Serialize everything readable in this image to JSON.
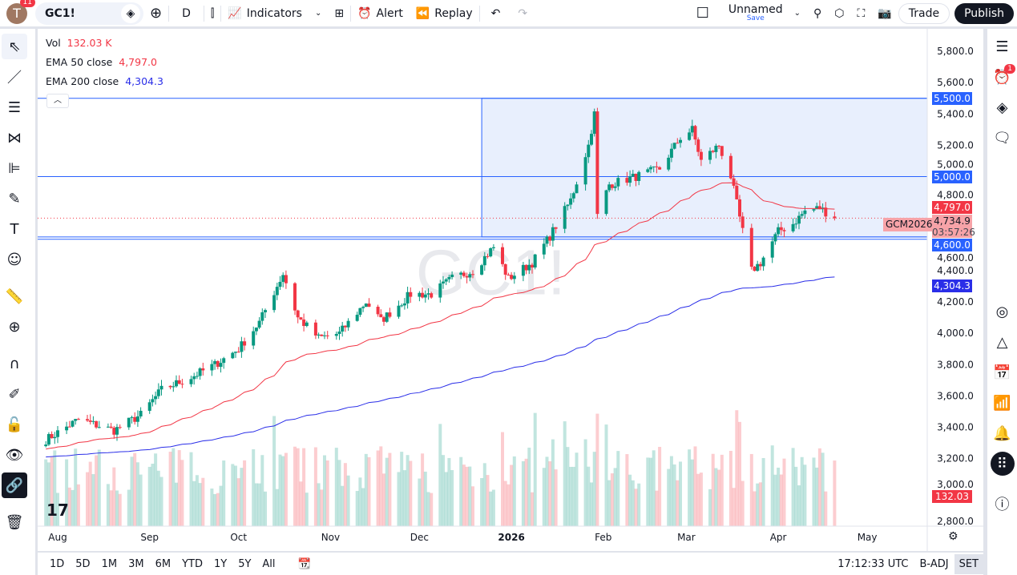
{
  "topbar": {
    "avatar_letter": "T",
    "notifications": "11",
    "symbol": "GC1!",
    "interval": "D",
    "indicators": "Indicators",
    "alert": "Alert",
    "replay": "Replay",
    "layout_name": "Unnamed",
    "save": "Save",
    "trade": "Trade",
    "publish": "Publish"
  },
  "legend": {
    "vol_label": "Vol",
    "vol_value": "132.03 K",
    "ema50_label": "EMA 50 close",
    "ema50_value": "4,797.0",
    "ema200_label": "EMA 200 close",
    "ema200_value": "4,304.3"
  },
  "watermark": "GC1!",
  "colors": {
    "up": "#089981",
    "down": "#f23645",
    "ema50": "#f23645",
    "ema200": "#2a2ee8",
    "line": "#2962ff",
    "rect": "#e8effd"
  },
  "price_axis": {
    "ticks": [
      "5,800.0",
      "5,600.0",
      "5,400.0",
      "5,200.0",
      "5,000.0",
      "4,800.0",
      "4,600.0",
      "4,400.0",
      "4,200.0",
      "4,000.0",
      "3,800.0",
      "3,600.0",
      "3,400.0",
      "3,200.0",
      "3,000.0",
      "2,800.0"
    ],
    "labels": {
      "line_5500": "5,500.0",
      "line_5000": "5,000.0",
      "ema50": "4,797.0",
      "last": "4,734.9",
      "countdown": "03:57:26",
      "line_4600": "4,600.0",
      "ema200": "4,304.3",
      "vol": "132.03 K",
      "contract": "GCM2026"
    }
  },
  "time_axis": [
    "Aug",
    "Sep",
    "Oct",
    "Nov",
    "Dec",
    "2026",
    "Feb",
    "Mar",
    "Apr",
    "May"
  ],
  "bottom": {
    "ranges": [
      "1D",
      "5D",
      "1M",
      "3M",
      "6M",
      "YTD",
      "1Y",
      "5Y",
      "All"
    ],
    "clock": "17:12:33 UTC",
    "adj": "B-ADJ",
    "session": "SET"
  },
  "right_badge": "1",
  "chart_data": {
    "type": "candlestick",
    "symbol": "GC1!",
    "interval": "D",
    "ylim": [
      2800,
      5800
    ],
    "approx_closes": [
      [
        "2025-07-28",
        3320
      ],
      [
        "2025-08-08",
        3450
      ],
      [
        "2025-08-20",
        3380
      ],
      [
        "2025-08-29",
        3480
      ],
      [
        "2025-09-05",
        3640
      ],
      [
        "2025-09-15",
        3720
      ],
      [
        "2025-09-23",
        3800
      ],
      [
        "2025-10-01",
        3900
      ],
      [
        "2025-10-08",
        4070
      ],
      [
        "2025-10-16",
        4380
      ],
      [
        "2025-10-21",
        4100
      ],
      [
        "2025-10-28",
        3970
      ],
      [
        "2025-11-04",
        4000
      ],
      [
        "2025-11-13",
        4200
      ],
      [
        "2025-11-18",
        4080
      ],
      [
        "2025-11-28",
        4250
      ],
      [
        "2025-12-05",
        4250
      ],
      [
        "2025-12-12",
        4350
      ],
      [
        "2025-12-19",
        4400
      ],
      [
        "2025-12-26",
        4550
      ],
      [
        "2025-12-31",
        4350
      ],
      [
        "2026-01-08",
        4450
      ],
      [
        "2026-01-14",
        4620
      ],
      [
        "2026-01-21",
        4850
      ],
      [
        "2026-01-27",
        5200
      ],
      [
        "2026-01-29",
        5400
      ],
      [
        "2026-01-30",
        4750
      ],
      [
        "2026-02-03",
        4950
      ],
      [
        "2026-02-12",
        5000
      ],
      [
        "2026-02-20",
        5050
      ],
      [
        "2026-02-27",
        5250
      ],
      [
        "2026-03-03",
        5300
      ],
      [
        "2026-03-06",
        5100
      ],
      [
        "2026-03-12",
        5200
      ],
      [
        "2026-03-16",
        5000
      ],
      [
        "2026-03-20",
        4650
      ],
      [
        "2026-03-23",
        4400
      ],
      [
        "2026-03-26",
        4450
      ],
      [
        "2026-04-01",
        4650
      ],
      [
        "2026-04-06",
        4700
      ],
      [
        "2026-04-10",
        4780
      ],
      [
        "2026-04-15",
        4800
      ],
      [
        "2026-04-20",
        4735
      ]
    ],
    "horizontal_lines": [
      5500,
      5000,
      4615,
      4600
    ],
    "rectangle": {
      "from": "2025-12-22",
      "top": 5500,
      "bottom": 4615
    },
    "ema50_last": 4797.0,
    "ema200_last": 4304.3,
    "last_price": 4734.9,
    "last_volume_k": 132.03
  }
}
